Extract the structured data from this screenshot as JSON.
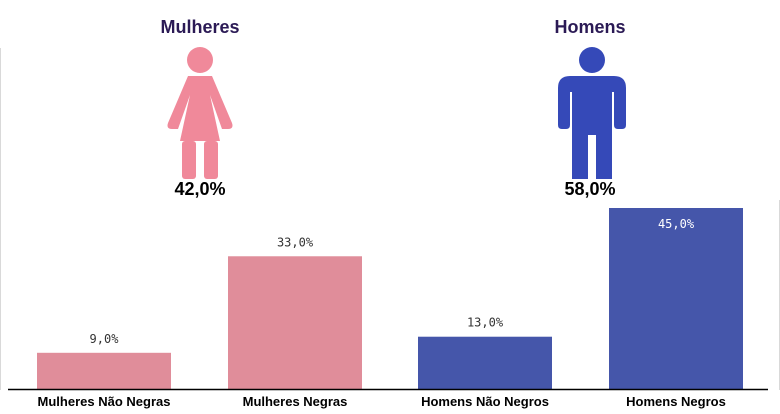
{
  "groups": [
    {
      "title": "Mulheres",
      "percent": "42,0%",
      "icon": "female-person-icon",
      "color": "#f0899a"
    },
    {
      "title": "Homens",
      "percent": "58,0%",
      "icon": "male-person-icon",
      "color": "#3549b8"
    }
  ],
  "chart_data": {
    "type": "bar",
    "categories": [
      "Mulheres Não Negras",
      "Mulheres Negras",
      "Homens Não Negros",
      "Homens Negros"
    ],
    "values": [
      9.0,
      33.0,
      13.0,
      45.0
    ],
    "value_labels": [
      "9,0%",
      "33,0%",
      "13,0%",
      "45,0%"
    ],
    "colors": [
      "#e08d9a",
      "#e08d9a",
      "#4556aa",
      "#4556aa"
    ],
    "label_colors": [
      "#333333",
      "#333333",
      "#333333",
      "#ffffff"
    ],
    "ylim": [
      0,
      45
    ],
    "grid": false
  }
}
